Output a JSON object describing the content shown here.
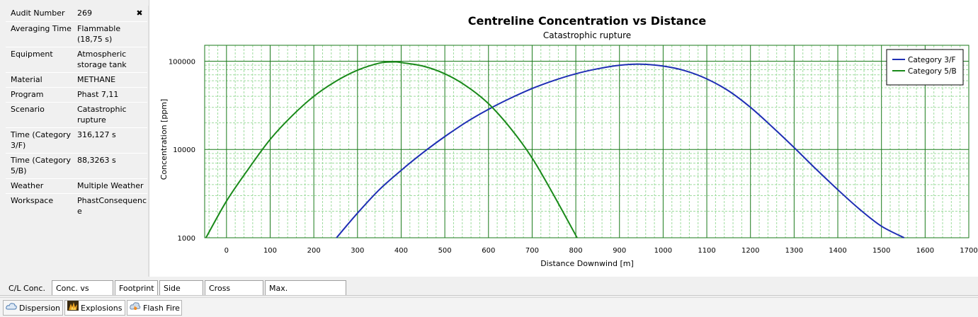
{
  "side_panel": {
    "rows": [
      {
        "label": "Audit Number",
        "value": "269"
      },
      {
        "label": "Averaging Time",
        "value": "Flammable (18,75 s)"
      },
      {
        "label": "Equipment",
        "value": "Atmospheric storage tank"
      },
      {
        "label": "Material",
        "value": "METHANE"
      },
      {
        "label": "Program",
        "value": "Phast 7,11"
      },
      {
        "label": "Scenario",
        "value": "Catastrophic rupture"
      },
      {
        "label": "Time (Category 3/F)",
        "value": "316,127 s"
      },
      {
        "label": "Time (Category 5/B)",
        "value": "88,3263 s"
      },
      {
        "label": "Weather",
        "value": "Multiple Weather"
      },
      {
        "label": "Workspace",
        "value": "PhastConsequence"
      }
    ],
    "close_icon": "close-icon"
  },
  "chart_data": {
    "type": "line",
    "title": "Centreline Concentration vs Distance",
    "subtitle": "Catastrophic rupture",
    "xlabel": "Distance Downwind [m]",
    "ylabel": "Concentration [ppm]",
    "xlim": [
      -50,
      1700
    ],
    "ylim": [
      1000,
      100000
    ],
    "yscale": "log",
    "xticks": [
      0,
      100,
      200,
      300,
      400,
      500,
      600,
      700,
      800,
      900,
      1000,
      1100,
      1200,
      1300,
      1400,
      1500,
      1600,
      1700
    ],
    "yticks": [
      1000,
      10000,
      100000
    ],
    "yticklabels": [
      "1000",
      "10000",
      "100000"
    ],
    "grid": true,
    "legend_position": "top-right",
    "series": [
      {
        "name": "Category 3/F",
        "color": "#1f2fb4",
        "x": [
          252,
          300,
          350,
          400,
          450,
          500,
          550,
          600,
          650,
          700,
          750,
          800,
          850,
          900,
          950,
          1000,
          1050,
          1100,
          1150,
          1200,
          1250,
          1300,
          1350,
          1400,
          1450,
          1500,
          1552
        ],
        "y": [
          1000,
          1900,
          3500,
          5800,
          9200,
          14000,
          20500,
          28500,
          38000,
          49000,
          60500,
          72000,
          82000,
          90000,
          92500,
          88000,
          78000,
          63000,
          46000,
          30000,
          18000,
          10500,
          6000,
          3500,
          2100,
          1350,
          1000
        ]
      },
      {
        "name": "Category 5/B",
        "color": "#1a8a1a",
        "x": [
          -47,
          0,
          50,
          100,
          150,
          200,
          250,
          300,
          350,
          380,
          400,
          450,
          500,
          550,
          600,
          650,
          700,
          750,
          803
        ],
        "y": [
          1000,
          2600,
          6000,
          13000,
          24000,
          40000,
          59000,
          79000,
          95000,
          98000,
          96500,
          88000,
          72000,
          52000,
          33000,
          17500,
          8000,
          3000,
          1000
        ]
      }
    ]
  },
  "chart_tabs": [
    {
      "label": "C/L Conc.",
      "active": true
    },
    {
      "label": "Conc. vs Time",
      "active": false
    },
    {
      "label": "Footprint",
      "active": false
    },
    {
      "label": "Side View",
      "active": false
    },
    {
      "label": "Cross Section",
      "active": false
    },
    {
      "label": "Max. Concentration",
      "active": false
    }
  ],
  "bottom_tabs": [
    {
      "label": "Dispersion",
      "icon": "cloud-icon",
      "active": true
    },
    {
      "label": "Explosions",
      "icon": "explosion-icon",
      "active": false
    },
    {
      "label": "Flash Fire",
      "icon": "flash-fire-icon",
      "active": false
    }
  ]
}
